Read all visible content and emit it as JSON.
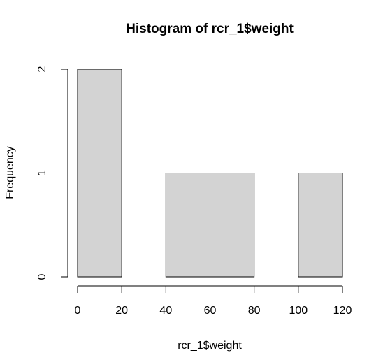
{
  "chart_data": {
    "type": "bar",
    "title": "Histogram of rcr_1$weight",
    "xlabel": "rcr_1$weight",
    "ylabel": "Frequency",
    "bins": [
      {
        "start": 0,
        "end": 20,
        "count": 2
      },
      {
        "start": 20,
        "end": 40,
        "count": 0
      },
      {
        "start": 40,
        "end": 60,
        "count": 1
      },
      {
        "start": 60,
        "end": 80,
        "count": 1
      },
      {
        "start": 80,
        "end": 100,
        "count": 0
      },
      {
        "start": 100,
        "end": 120,
        "count": 1
      }
    ],
    "xlim": [
      0,
      120
    ],
    "ylim": [
      0,
      2
    ],
    "x_ticks": [
      0,
      20,
      40,
      60,
      80,
      100,
      120
    ],
    "y_ticks": [
      0,
      1,
      2
    ],
    "grid": false,
    "bar_color": "#d3d3d3",
    "edge_color": "#000000"
  }
}
